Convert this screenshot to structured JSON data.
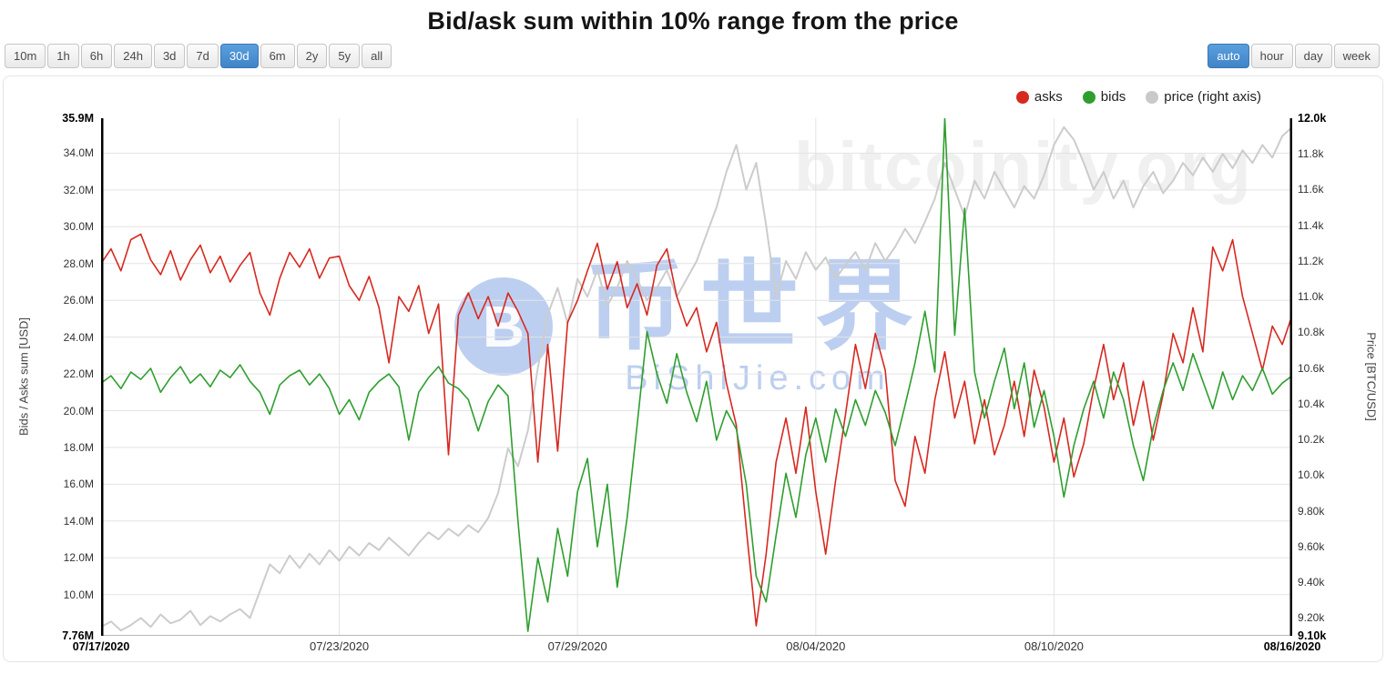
{
  "title": "Bid/ask sum within 10% range from the price",
  "toolbar": {
    "ranges": [
      {
        "label": "10m",
        "selected": false
      },
      {
        "label": "1h",
        "selected": false
      },
      {
        "label": "6h",
        "selected": false
      },
      {
        "label": "24h",
        "selected": false
      },
      {
        "label": "3d",
        "selected": false
      },
      {
        "label": "7d",
        "selected": false
      },
      {
        "label": "30d",
        "selected": true
      },
      {
        "label": "6m",
        "selected": false
      },
      {
        "label": "2y",
        "selected": false
      },
      {
        "label": "5y",
        "selected": false
      },
      {
        "label": "all",
        "selected": false
      }
    ],
    "resolutions": [
      {
        "label": "auto",
        "selected": true
      },
      {
        "label": "hour",
        "selected": false
      },
      {
        "label": "day",
        "selected": false
      },
      {
        "label": "week",
        "selected": false
      }
    ]
  },
  "legend": [
    {
      "label": "asks",
      "color": "#d62920"
    },
    {
      "label": "bids",
      "color": "#2f9e2f"
    },
    {
      "label": "price (right axis)",
      "color": "#c9c9c9"
    }
  ],
  "watermarks": {
    "site": "bitcoinity.org",
    "logo_letter": "B",
    "cn": "币世界",
    "cn_sub": "BiShiJie.com"
  },
  "colors": {
    "accent_blue": "#4a90d5",
    "grid": "#e3e3e3",
    "axis_line": "#000000"
  },
  "chart_data": {
    "type": "line",
    "title": "Bid/ask sum within 10% range from the price",
    "x_tick_labels": [
      {
        "label": "07/17/2020",
        "bold": true
      },
      {
        "label": "07/23/2020",
        "bold": false
      },
      {
        "label": "07/29/2020",
        "bold": false
      },
      {
        "label": "08/04/2020",
        "bold": false
      },
      {
        "label": "08/10/2020",
        "bold": false
      },
      {
        "label": "08/16/2020",
        "bold": true
      }
    ],
    "y_left": {
      "label": "Bids / Asks sum [USD]",
      "range": [
        7.76,
        35.9
      ],
      "unit": "M",
      "ticks": [
        {
          "label": "35.9M",
          "value": 35.9,
          "bold": true,
          "edge": true
        },
        {
          "label": "34.0M",
          "value": 34.0,
          "bold": false,
          "edge": false
        },
        {
          "label": "32.0M",
          "value": 32.0,
          "bold": false,
          "edge": false
        },
        {
          "label": "30.0M",
          "value": 30.0,
          "bold": false,
          "edge": false
        },
        {
          "label": "28.0M",
          "value": 28.0,
          "bold": false,
          "edge": false
        },
        {
          "label": "26.0M",
          "value": 26.0,
          "bold": false,
          "edge": false
        },
        {
          "label": "24.0M",
          "value": 24.0,
          "bold": false,
          "edge": false
        },
        {
          "label": "22.0M",
          "value": 22.0,
          "bold": false,
          "edge": false
        },
        {
          "label": "20.0M",
          "value": 20.0,
          "bold": false,
          "edge": false
        },
        {
          "label": "18.0M",
          "value": 18.0,
          "bold": false,
          "edge": false
        },
        {
          "label": "16.0M",
          "value": 16.0,
          "bold": false,
          "edge": false
        },
        {
          "label": "14.0M",
          "value": 14.0,
          "bold": false,
          "edge": false
        },
        {
          "label": "12.0M",
          "value": 12.0,
          "bold": false,
          "edge": false
        },
        {
          "label": "10.0M",
          "value": 10.0,
          "bold": false,
          "edge": false
        },
        {
          "label": "7.76M",
          "value": 7.76,
          "bold": true,
          "edge": true
        }
      ]
    },
    "y_right": {
      "label": "Price [BTC/USD]",
      "range": [
        9.1,
        12.0
      ],
      "unit": "k",
      "ticks": [
        {
          "label": "12.0k",
          "value": 12.0,
          "bold": true,
          "edge": true
        },
        {
          "label": "11.8k",
          "value": 11.8,
          "bold": false,
          "edge": false
        },
        {
          "label": "11.6k",
          "value": 11.6,
          "bold": false,
          "edge": false
        },
        {
          "label": "11.4k",
          "value": 11.4,
          "bold": false,
          "edge": false
        },
        {
          "label": "11.2k",
          "value": 11.2,
          "bold": false,
          "edge": false
        },
        {
          "label": "11.0k",
          "value": 11.0,
          "bold": false,
          "edge": false
        },
        {
          "label": "10.8k",
          "value": 10.8,
          "bold": false,
          "edge": false
        },
        {
          "label": "10.6k",
          "value": 10.6,
          "bold": false,
          "edge": false
        },
        {
          "label": "10.4k",
          "value": 10.4,
          "bold": false,
          "edge": false
        },
        {
          "label": "10.2k",
          "value": 10.2,
          "bold": false,
          "edge": false
        },
        {
          "label": "10.0k",
          "value": 10.0,
          "bold": false,
          "edge": false
        },
        {
          "label": "9.80k",
          "value": 9.8,
          "bold": false,
          "edge": false
        },
        {
          "label": "9.60k",
          "value": 9.6,
          "bold": false,
          "edge": false
        },
        {
          "label": "9.40k",
          "value": 9.4,
          "bold": false,
          "edge": false
        },
        {
          "label": "9.20k",
          "value": 9.2,
          "bold": false,
          "edge": false
        },
        {
          "label": "9.10k",
          "value": 9.1,
          "bold": true,
          "edge": true
        }
      ]
    },
    "series": [
      {
        "name": "asks",
        "axis": "left",
        "color": "#d62920",
        "values": [
          28.0,
          28.8,
          27.6,
          29.3,
          29.6,
          28.2,
          27.4,
          28.7,
          27.1,
          28.2,
          29.0,
          27.5,
          28.4,
          27.0,
          27.9,
          28.6,
          26.4,
          25.2,
          27.2,
          28.6,
          27.8,
          28.8,
          27.2,
          28.3,
          28.4,
          26.8,
          26.0,
          27.3,
          25.6,
          22.6,
          26.2,
          25.4,
          26.8,
          24.2,
          25.8,
          17.6,
          25.2,
          26.4,
          25.0,
          26.2,
          24.6,
          26.4,
          25.4,
          24.2,
          17.2,
          23.6,
          17.8,
          24.8,
          26.0,
          27.6,
          29.1,
          26.6,
          28.1,
          25.6,
          26.9,
          25.2,
          27.9,
          28.8,
          26.2,
          24.6,
          25.6,
          23.2,
          24.8,
          21.5,
          19.2,
          13.6,
          8.3,
          12.2,
          17.2,
          19.6,
          16.6,
          20.2,
          15.6,
          12.2,
          16.2,
          19.8,
          23.6,
          21.2,
          24.2,
          22.2,
          16.2,
          14.8,
          18.6,
          16.6,
          20.6,
          23.2,
          19.6,
          21.6,
          18.2,
          20.6,
          17.6,
          19.2,
          21.6,
          18.6,
          22.2,
          20.2,
          17.2,
          19.6,
          16.4,
          18.2,
          21.2,
          23.6,
          20.6,
          22.6,
          19.2,
          21.6,
          18.4,
          20.9,
          24.2,
          22.6,
          25.6,
          23.2,
          28.9,
          27.6,
          29.3,
          26.2,
          24.2,
          22.2,
          24.6,
          23.6,
          25.2
        ]
      },
      {
        "name": "bids",
        "axis": "left",
        "color": "#2f9e2f",
        "values": [
          21.5,
          21.9,
          21.2,
          22.1,
          21.7,
          22.3,
          21.0,
          21.8,
          22.4,
          21.5,
          22.0,
          21.3,
          22.2,
          21.8,
          22.5,
          21.6,
          21.0,
          19.8,
          21.4,
          21.9,
          22.2,
          21.4,
          22.0,
          21.2,
          19.8,
          20.6,
          19.5,
          21.0,
          21.6,
          22.0,
          21.3,
          18.4,
          21.0,
          21.8,
          22.4,
          21.5,
          21.2,
          20.6,
          18.9,
          20.5,
          21.4,
          20.8,
          14.0,
          8.0,
          12.0,
          9.6,
          13.6,
          11.0,
          15.6,
          17.4,
          12.6,
          16.0,
          10.4,
          14.2,
          19.2,
          24.3,
          22.0,
          20.4,
          23.1,
          21.0,
          19.4,
          21.6,
          18.4,
          20.0,
          19.0,
          16.0,
          11.0,
          9.6,
          13.2,
          16.6,
          14.2,
          17.6,
          19.6,
          17.2,
          20.1,
          18.6,
          20.6,
          19.2,
          21.1,
          19.9,
          18.1,
          20.3,
          22.6,
          25.4,
          22.1,
          35.9,
          24.1,
          31.0,
          22.1,
          19.6,
          21.6,
          23.4,
          20.1,
          22.6,
          19.1,
          21.1,
          18.6,
          15.3,
          18.1,
          20.1,
          21.6,
          19.6,
          22.1,
          20.6,
          18.1,
          16.2,
          19.1,
          21.1,
          22.6,
          21.1,
          23.1,
          21.6,
          20.1,
          22.1,
          20.6,
          21.9,
          21.1,
          22.3,
          20.9,
          21.5,
          21.9
        ]
      },
      {
        "name": "price",
        "axis": "right",
        "color": "#cccccc",
        "values": [
          9.15,
          9.18,
          9.13,
          9.16,
          9.2,
          9.15,
          9.22,
          9.17,
          9.19,
          9.24,
          9.16,
          9.21,
          9.18,
          9.22,
          9.25,
          9.2,
          9.35,
          9.5,
          9.45,
          9.55,
          9.48,
          9.56,
          9.5,
          9.58,
          9.52,
          9.6,
          9.55,
          9.62,
          9.58,
          9.65,
          9.6,
          9.55,
          9.62,
          9.68,
          9.64,
          9.7,
          9.66,
          9.72,
          9.68,
          9.76,
          9.9,
          10.15,
          10.05,
          10.25,
          10.6,
          10.9,
          11.05,
          10.85,
          11.1,
          11.0,
          11.15,
          10.95,
          11.05,
          11.2,
          11.1,
          10.98,
          11.05,
          11.15,
          11.0,
          11.1,
          11.2,
          11.35,
          11.5,
          11.7,
          11.85,
          11.6,
          11.75,
          11.4,
          11.0,
          11.2,
          11.1,
          11.25,
          11.15,
          11.22,
          11.1,
          11.18,
          11.25,
          11.15,
          11.3,
          11.2,
          11.28,
          11.38,
          11.3,
          11.42,
          11.55,
          11.75,
          11.6,
          11.45,
          11.65,
          11.55,
          11.7,
          11.6,
          11.5,
          11.62,
          11.55,
          11.68,
          11.85,
          11.95,
          11.88,
          11.75,
          11.6,
          11.7,
          11.55,
          11.65,
          11.5,
          11.62,
          11.7,
          11.58,
          11.65,
          11.75,
          11.68,
          11.78,
          11.7,
          11.8,
          11.72,
          11.82,
          11.75,
          11.85,
          11.78,
          11.9,
          11.95
        ]
      }
    ]
  }
}
